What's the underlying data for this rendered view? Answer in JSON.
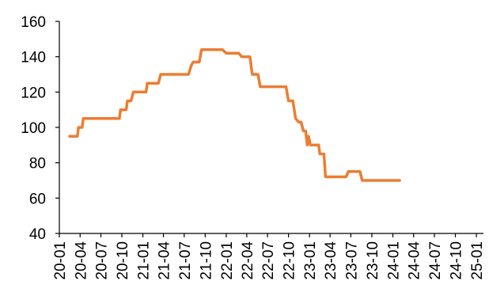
{
  "chart_data": {
    "type": "line",
    "title": "",
    "xlabel": "",
    "ylabel": "",
    "ylim": [
      40,
      160
    ],
    "yticks": [
      40,
      60,
      80,
      100,
      120,
      140,
      160
    ],
    "xlim": [
      "2020-01-01",
      "2025-02-01"
    ],
    "xticks": [
      {
        "date": "2020-01-01",
        "label": "20-01"
      },
      {
        "date": "2020-04-01",
        "label": "20-04"
      },
      {
        "date": "2020-07-01",
        "label": "20-07"
      },
      {
        "date": "2020-10-01",
        "label": "20-10"
      },
      {
        "date": "2021-01-01",
        "label": "21-01"
      },
      {
        "date": "2021-04-01",
        "label": "21-04"
      },
      {
        "date": "2021-07-01",
        "label": "21-07"
      },
      {
        "date": "2021-10-01",
        "label": "21-10"
      },
      {
        "date": "2022-01-01",
        "label": "22-01"
      },
      {
        "date": "2022-04-01",
        "label": "22-04"
      },
      {
        "date": "2022-07-01",
        "label": "22-07"
      },
      {
        "date": "2022-10-01",
        "label": "22-10"
      },
      {
        "date": "2023-01-01",
        "label": "23-01"
      },
      {
        "date": "2023-04-01",
        "label": "23-04"
      },
      {
        "date": "2023-07-01",
        "label": "23-07"
      },
      {
        "date": "2023-10-01",
        "label": "23-10"
      },
      {
        "date": "2024-01-01",
        "label": "24-01"
      },
      {
        "date": "2024-04-01",
        "label": "24-04"
      },
      {
        "date": "2024-07-01",
        "label": "24-07"
      },
      {
        "date": "2024-10-01",
        "label": "24-10"
      },
      {
        "date": "2025-01-01",
        "label": "25-01"
      }
    ],
    "grid": false,
    "legend": "none",
    "series": [
      {
        "color": "#ed7d31",
        "points": [
          [
            "2020-02-15",
            95
          ],
          [
            "2020-03-20",
            95
          ],
          [
            "2020-03-25",
            100
          ],
          [
            "2020-04-10",
            100
          ],
          [
            "2020-04-15",
            105
          ],
          [
            "2020-09-20",
            105
          ],
          [
            "2020-09-25",
            110
          ],
          [
            "2020-10-20",
            110
          ],
          [
            "2020-10-25",
            115
          ],
          [
            "2020-11-10",
            115
          ],
          [
            "2020-11-20",
            120
          ],
          [
            "2021-01-15",
            120
          ],
          [
            "2021-01-20",
            125
          ],
          [
            "2021-03-10",
            125
          ],
          [
            "2021-03-20",
            130
          ],
          [
            "2021-07-20",
            130
          ],
          [
            "2021-08-01",
            135
          ],
          [
            "2021-08-10",
            137
          ],
          [
            "2021-09-05",
            137
          ],
          [
            "2021-09-15",
            144
          ],
          [
            "2021-12-15",
            144
          ],
          [
            "2022-01-01",
            142
          ],
          [
            "2022-02-25",
            142
          ],
          [
            "2022-03-10",
            140
          ],
          [
            "2022-04-15",
            140
          ],
          [
            "2022-04-25",
            130
          ],
          [
            "2022-05-20",
            130
          ],
          [
            "2022-05-30",
            123
          ],
          [
            "2022-09-20",
            123
          ],
          [
            "2022-10-01",
            115
          ],
          [
            "2022-10-20",
            115
          ],
          [
            "2022-11-01",
            105
          ],
          [
            "2022-11-15",
            103
          ],
          [
            "2022-11-25",
            103
          ],
          [
            "2022-12-05",
            98
          ],
          [
            "2022-12-15",
            98
          ],
          [
            "2022-12-22",
            90
          ],
          [
            "2022-12-28",
            95
          ],
          [
            "2023-01-05",
            90
          ],
          [
            "2023-02-10",
            90
          ],
          [
            "2023-02-15",
            85
          ],
          [
            "2023-03-05",
            85
          ],
          [
            "2023-03-12",
            72
          ],
          [
            "2023-06-10",
            72
          ],
          [
            "2023-06-20",
            75
          ],
          [
            "2023-08-10",
            75
          ],
          [
            "2023-08-20",
            70
          ],
          [
            "2024-01-31",
            70
          ]
        ]
      }
    ]
  }
}
